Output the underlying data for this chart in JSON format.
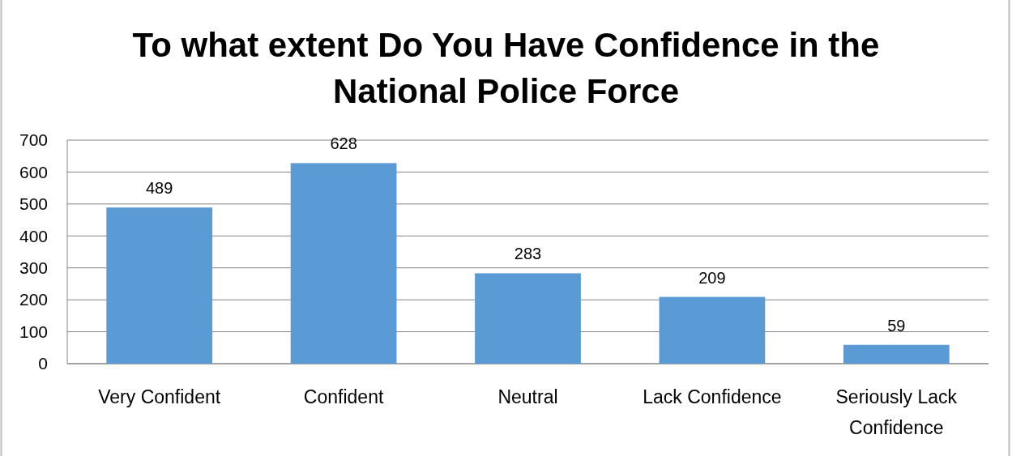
{
  "chart_data": {
    "type": "bar",
    "title": "To what extent Do You Have Confidence in the National Police Force",
    "categories": [
      "Very Confident",
      "Confident",
      "Neutral",
      "Lack Confidence",
      "Seriously Lack Confidence"
    ],
    "values": [
      489,
      628,
      283,
      209,
      59
    ],
    "color": "#5b9bd5",
    "ylim": [
      0,
      700
    ],
    "yticks": [
      0,
      100,
      200,
      300,
      400,
      500,
      600,
      700
    ],
    "grid": "y",
    "data_labels": true
  }
}
